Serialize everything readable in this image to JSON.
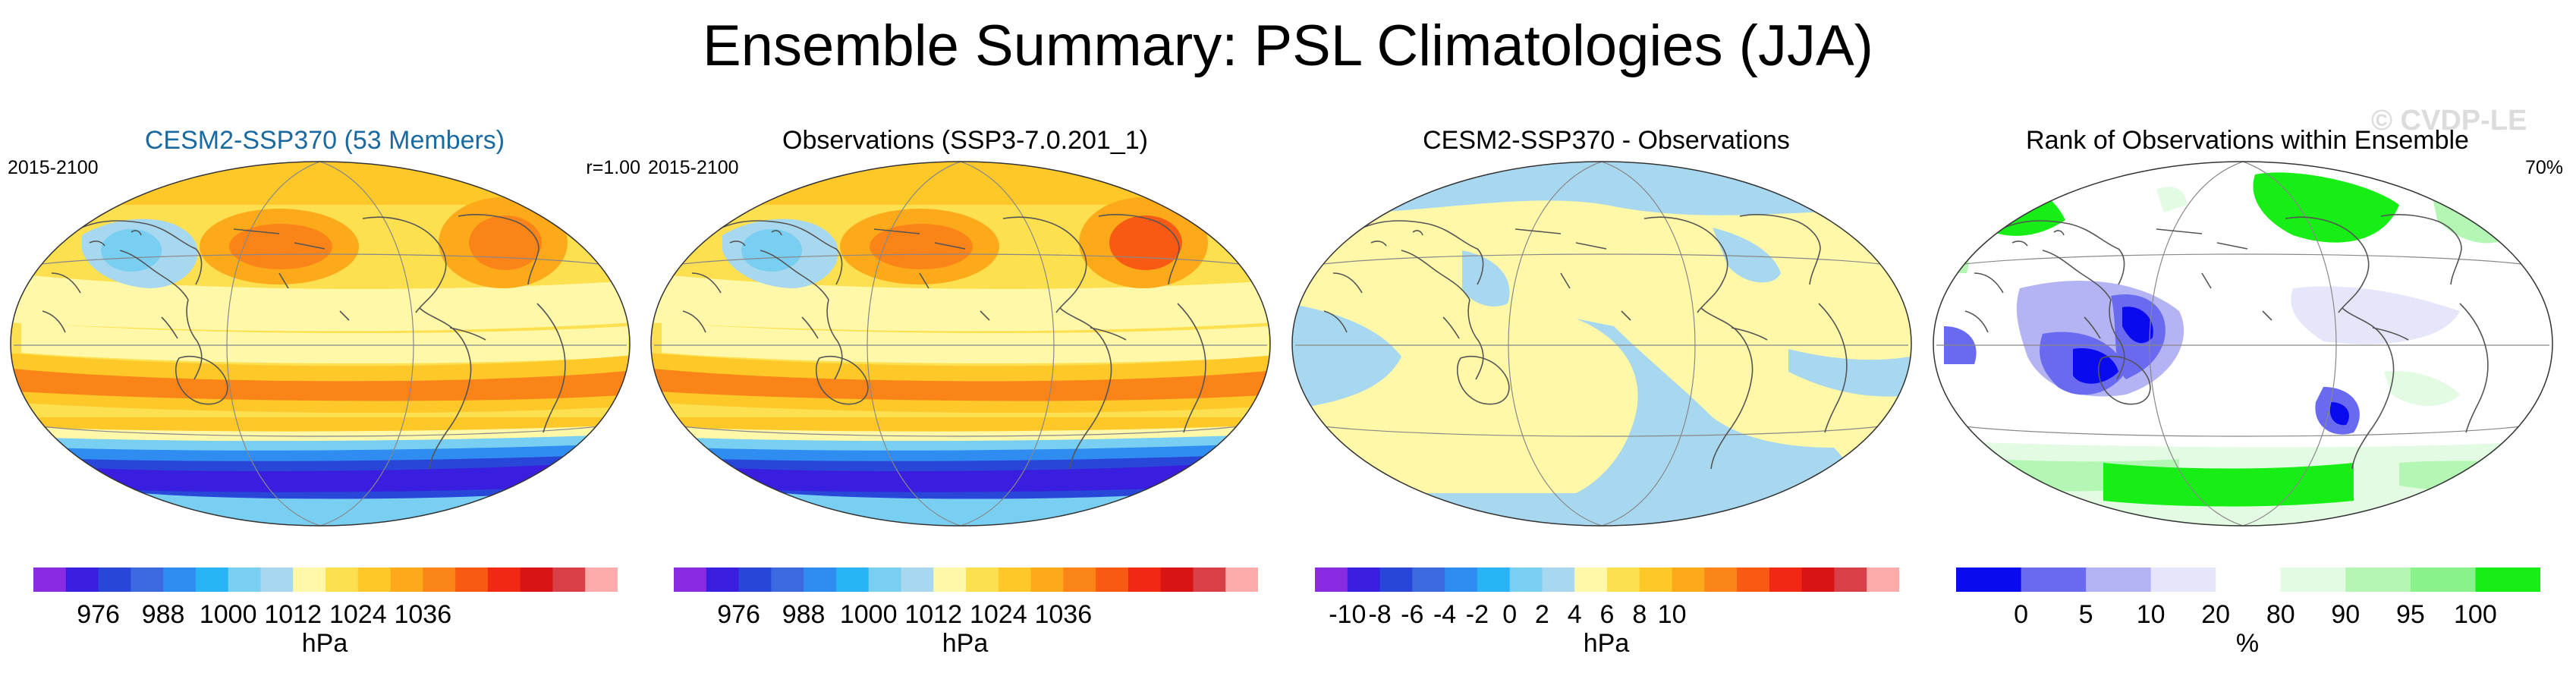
{
  "title": "Ensemble Summary: PSL Climatologies (JJA)",
  "watermark": "© CVDP-LE",
  "panels": [
    {
      "title": "CESM2-SSP370 (53 Members)",
      "title_color": "#1a6aa0",
      "left_label": "2015-2100",
      "right_label": "r=1.00",
      "colorbar": {
        "colors": [
          "#8a2be2",
          "#3a1ee0",
          "#2846d8",
          "#3c68e0",
          "#2f8cf0",
          "#28b4f4",
          "#78cff2",
          "#a8d8ef",
          "#fff8a8",
          "#fde050",
          "#fdc828",
          "#fdaa1a",
          "#fb8418",
          "#f85a14",
          "#f02814",
          "#d81414",
          "#d84048",
          "#fcaaaa"
        ],
        "tick_labels": [
          "976",
          "988",
          "1000",
          "1012",
          "1024",
          "1036"
        ],
        "tick_positions": [
          2,
          4,
          6,
          8,
          10,
          12
        ],
        "unit": "hPa"
      }
    },
    {
      "title": "Observations (SSP3-7.0.201_1)",
      "title_color": "#000000",
      "left_label": "2015-2100",
      "right_label": "",
      "colorbar": {
        "colors": [
          "#8a2be2",
          "#3a1ee0",
          "#2846d8",
          "#3c68e0",
          "#2f8cf0",
          "#28b4f4",
          "#78cff2",
          "#a8d8ef",
          "#fff8a8",
          "#fde050",
          "#fdc828",
          "#fdaa1a",
          "#fb8418",
          "#f85a14",
          "#f02814",
          "#d81414",
          "#d84048",
          "#fcaaaa"
        ],
        "tick_labels": [
          "976",
          "988",
          "1000",
          "1012",
          "1024",
          "1036"
        ],
        "tick_positions": [
          2,
          4,
          6,
          8,
          10,
          12
        ],
        "unit": "hPa"
      }
    },
    {
      "title": "CESM2-SSP370 - Observations",
      "title_color": "#000000",
      "left_label": "",
      "right_label": "",
      "colorbar": {
        "colors": [
          "#8a2be2",
          "#3a1ee0",
          "#2846d8",
          "#3c68e0",
          "#2f8cf0",
          "#28b4f4",
          "#78cff2",
          "#a8d8ef",
          "#fff8a8",
          "#fde050",
          "#fdc828",
          "#fdaa1a",
          "#fb8418",
          "#f85a14",
          "#f02814",
          "#d81414",
          "#d84048",
          "#fcaaaa"
        ],
        "tick_labels": [
          "-10",
          "-8",
          "-6",
          "-4",
          "-2",
          "0",
          "2",
          "4",
          "6",
          "8",
          "10"
        ],
        "tick_positions": [
          1,
          2,
          3,
          4,
          5,
          6,
          7,
          8,
          9,
          10,
          11
        ],
        "unit": "hPa"
      }
    },
    {
      "title": "Rank of Observations within Ensemble",
      "title_color": "#000000",
      "left_label": "",
      "right_label": "70%",
      "colorbar": {
        "colors": [
          "#0a0aee",
          "#6a6af0",
          "#b4b4f5",
          "#e6e6fb",
          "#ffffff",
          "#e2fbe2",
          "#b4f7b4",
          "#8af28a",
          "#16ee16"
        ],
        "tick_labels": [
          "0",
          "5",
          "10",
          "20",
          "80",
          "90",
          "95",
          "100"
        ],
        "tick_positions": [
          1,
          2,
          3,
          4,
          5,
          6,
          7,
          8
        ],
        "unit": "%"
      }
    }
  ]
}
